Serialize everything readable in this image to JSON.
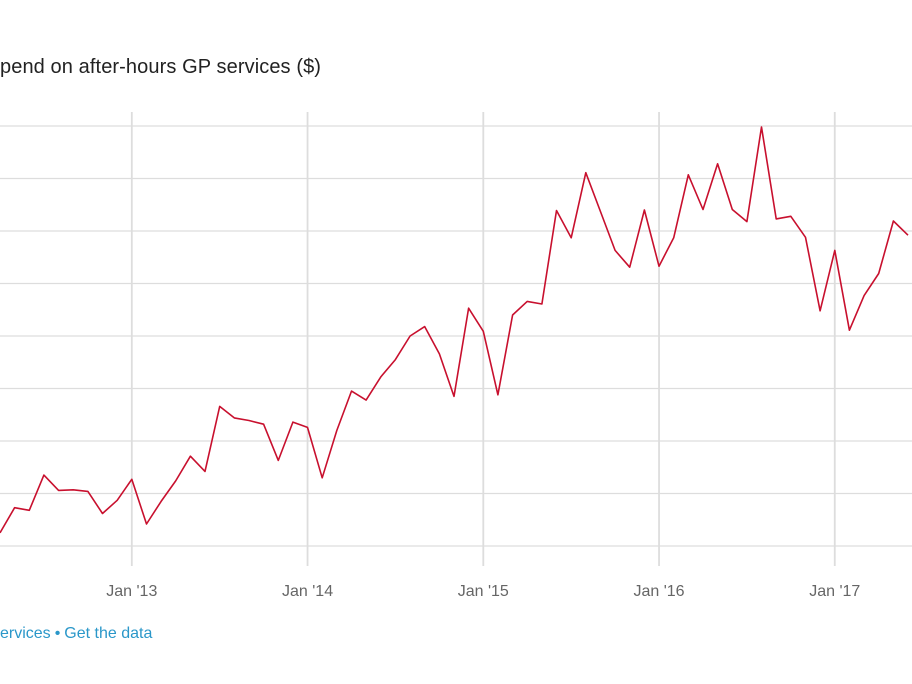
{
  "title": "pend on after-hours GP services ($)",
  "footer": {
    "source_link": "ervices",
    "separator": "•",
    "data_link": "Get the data"
  },
  "colors": {
    "series": "#c8102e",
    "grid": "#dddddd",
    "tick_text": "#666666",
    "link": "#2a97c9"
  },
  "chart_data": {
    "type": "line",
    "title": "pend on after-hours GP services ($)",
    "xlabel": "",
    "ylabel": "",
    "x_ticks": [
      "Jan '13",
      "Jan '14",
      "Jan '15",
      "Jan '16",
      "Jan '17"
    ],
    "grid": true,
    "legend": "none",
    "y_gridlines": 9,
    "ylim": [
      0,
      8
    ],
    "series": [
      {
        "x": [
          "2012-04",
          "2012-05",
          "2012-06",
          "2012-07",
          "2012-08",
          "2012-09",
          "2012-10",
          "2012-11",
          "2012-12",
          "2013-01",
          "2013-02",
          "2013-03",
          "2013-04",
          "2013-05",
          "2013-06",
          "2013-07",
          "2013-08",
          "2013-09",
          "2013-10",
          "2013-11",
          "2013-12",
          "2014-01",
          "2014-02",
          "2014-03",
          "2014-04",
          "2014-05",
          "2014-06",
          "2014-07",
          "2014-08",
          "2014-09",
          "2014-10",
          "2014-11",
          "2014-12",
          "2015-01",
          "2015-02",
          "2015-03",
          "2015-04",
          "2015-05",
          "2015-06",
          "2015-07",
          "2015-08",
          "2015-09",
          "2015-10",
          "2015-11",
          "2015-12",
          "2016-01",
          "2016-02",
          "2016-03",
          "2016-04",
          "2016-05",
          "2016-06",
          "2016-07",
          "2016-08",
          "2016-09",
          "2016-10",
          "2016-11",
          "2016-12",
          "2017-01",
          "2017-02",
          "2017-03",
          "2017-04",
          "2017-05",
          "2017-06"
        ],
        "y": [
          0.25,
          0.73,
          0.68,
          1.35,
          1.06,
          1.07,
          1.04,
          0.62,
          0.87,
          1.27,
          0.42,
          0.85,
          1.24,
          1.71,
          1.42,
          2.66,
          2.44,
          2.39,
          2.32,
          1.63,
          2.36,
          2.26,
          1.3,
          2.2,
          2.95,
          2.78,
          3.22,
          3.55,
          4.0,
          4.18,
          3.66,
          2.85,
          4.53,
          4.09,
          2.88,
          4.4,
          4.66,
          4.61,
          6.39,
          5.87,
          7.11,
          6.37,
          5.63,
          5.31,
          6.4,
          5.33,
          5.87,
          7.07,
          6.41,
          7.28,
          6.41,
          6.18,
          7.98,
          6.23,
          6.28,
          5.88,
          4.48,
          5.63,
          4.11,
          4.77,
          5.19,
          6.19,
          5.92
        ]
      }
    ]
  }
}
